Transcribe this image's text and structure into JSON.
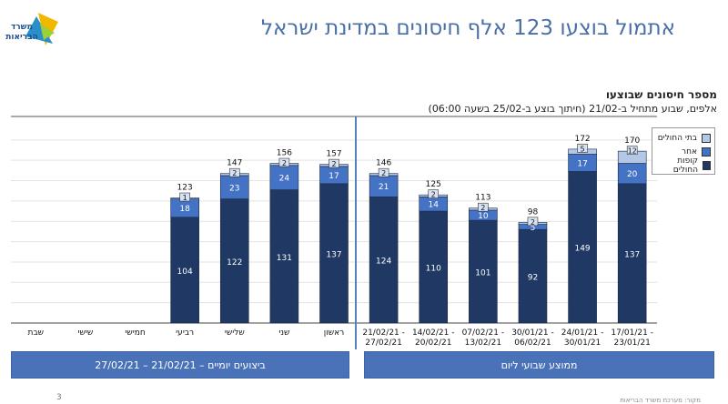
{
  "headline": "אתמול בוצעו 123 אלף חיסונים במדינת ישראל",
  "chart_data": {
    "type": "bar",
    "stacked": true,
    "title": "מספר חיסונים שבוצעו",
    "subtitle": "אלפים, שבוע מתחיל ב-21/02 (חיתוך בוצע ב-25/02 בשעה 06:00)",
    "categories": [
      "17/01/21 - 23/01/21",
      "24/01/21 - 30/01/21",
      "30/01/21 - 06/02/21",
      "07/02/21 - 13/02/21",
      "14/02/21 - 20/02/21",
      "21/02/21 - 27/02/21",
      "ראשון",
      "שני",
      "שלישי",
      "רביעי",
      "חמישי",
      "שישי",
      "שבת"
    ],
    "category_lines": [
      [
        "17/01/21 -",
        "23/01/21"
      ],
      [
        "24/01/21 -",
        "30/01/21"
      ],
      [
        "30/01/21 -",
        "06/02/21"
      ],
      [
        "07/02/21 -",
        "13/02/21"
      ],
      [
        "14/02/21 -",
        "20/02/21"
      ],
      [
        "21/02/21 -",
        "27/02/21"
      ],
      [
        "ראשון"
      ],
      [
        "שני"
      ],
      [
        "שלישי"
      ],
      [
        "רביעי"
      ],
      [
        "חמישי"
      ],
      [
        "שישי"
      ],
      [
        "שבת"
      ]
    ],
    "series": [
      {
        "name": "קופות החולים",
        "color": "#1f3864",
        "values": [
          137,
          149,
          92,
          101,
          110,
          124,
          137,
          131,
          122,
          104,
          null,
          null,
          null
        ]
      },
      {
        "name": "אחר",
        "color": "#4472c4",
        "values": [
          20,
          17,
          5,
          10,
          14,
          21,
          17,
          24,
          23,
          18,
          null,
          null,
          null
        ]
      },
      {
        "name": "בתי החולים",
        "color": "#b4c7e7",
        "values": [
          12,
          5,
          2,
          2,
          2,
          2,
          2,
          2,
          2,
          1,
          null,
          null,
          null
        ]
      }
    ],
    "totals": [
      170,
      172,
      98,
      113,
      125,
      146,
      157,
      156,
      147,
      123,
      null,
      null,
      null
    ],
    "ylim": [
      0,
      180
    ],
    "grid": true,
    "legend_position": "top-right"
  },
  "bands": {
    "weekly": "ממוצע שבועי ליום",
    "daily": "ביצועים יומיים – 21/02/21 – 27/02/21"
  },
  "logo_text": [
    "משרד",
    "הבריאות"
  ],
  "page_number": "3",
  "footer_source": "מקור: מערכת משרד הבריאות"
}
